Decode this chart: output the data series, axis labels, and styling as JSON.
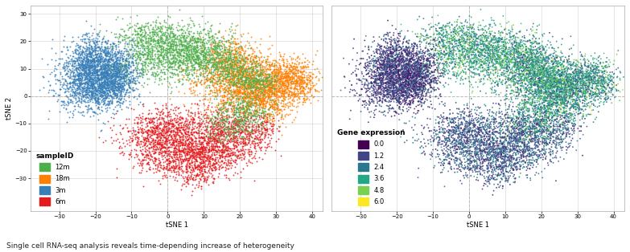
{
  "title": "Single cell RNA-seq analysis reveals time-depending increase of heterogeneity",
  "plot1": {
    "xlabel": "tSNE 1",
    "ylabel": "tSNE 2",
    "xlim": [
      -38,
      43
    ],
    "ylim": [
      -42,
      33
    ],
    "xticks": [
      -30,
      -20,
      -10,
      0,
      10,
      20,
      30,
      40
    ],
    "yticks": [
      -30,
      -20,
      -10,
      0,
      10,
      20,
      30
    ],
    "categories": [
      "3m",
      "12m",
      "18m",
      "6m"
    ],
    "colors": {
      "12m": "#4daf4a",
      "18m": "#ff7f00",
      "3m": "#377eb8",
      "6m": "#e41a1c"
    },
    "legend_title": "sampleID",
    "legend_order": [
      "12m",
      "18m",
      "3m",
      "6m"
    ]
  },
  "plot2": {
    "xlabel": "tSNE 1",
    "ylabel": "tSNE 2",
    "xlim": [
      -38,
      43
    ],
    "ylim": [
      -42,
      33
    ],
    "xticks": [
      -30,
      -20,
      -10,
      0,
      10,
      20,
      30,
      40
    ],
    "yticks": [],
    "legend_title": "Gene expression",
    "legend_values": [
      0.0,
      1.2,
      2.4,
      3.6,
      4.8,
      6.0
    ],
    "vmin": 0.0,
    "vmax": 6.0
  },
  "background_color": "#ffffff",
  "grid_color": "#d0d0d0",
  "dashed_line_color": "#bbbbbb",
  "point_size": 1.8,
  "point_alpha": 0.85
}
